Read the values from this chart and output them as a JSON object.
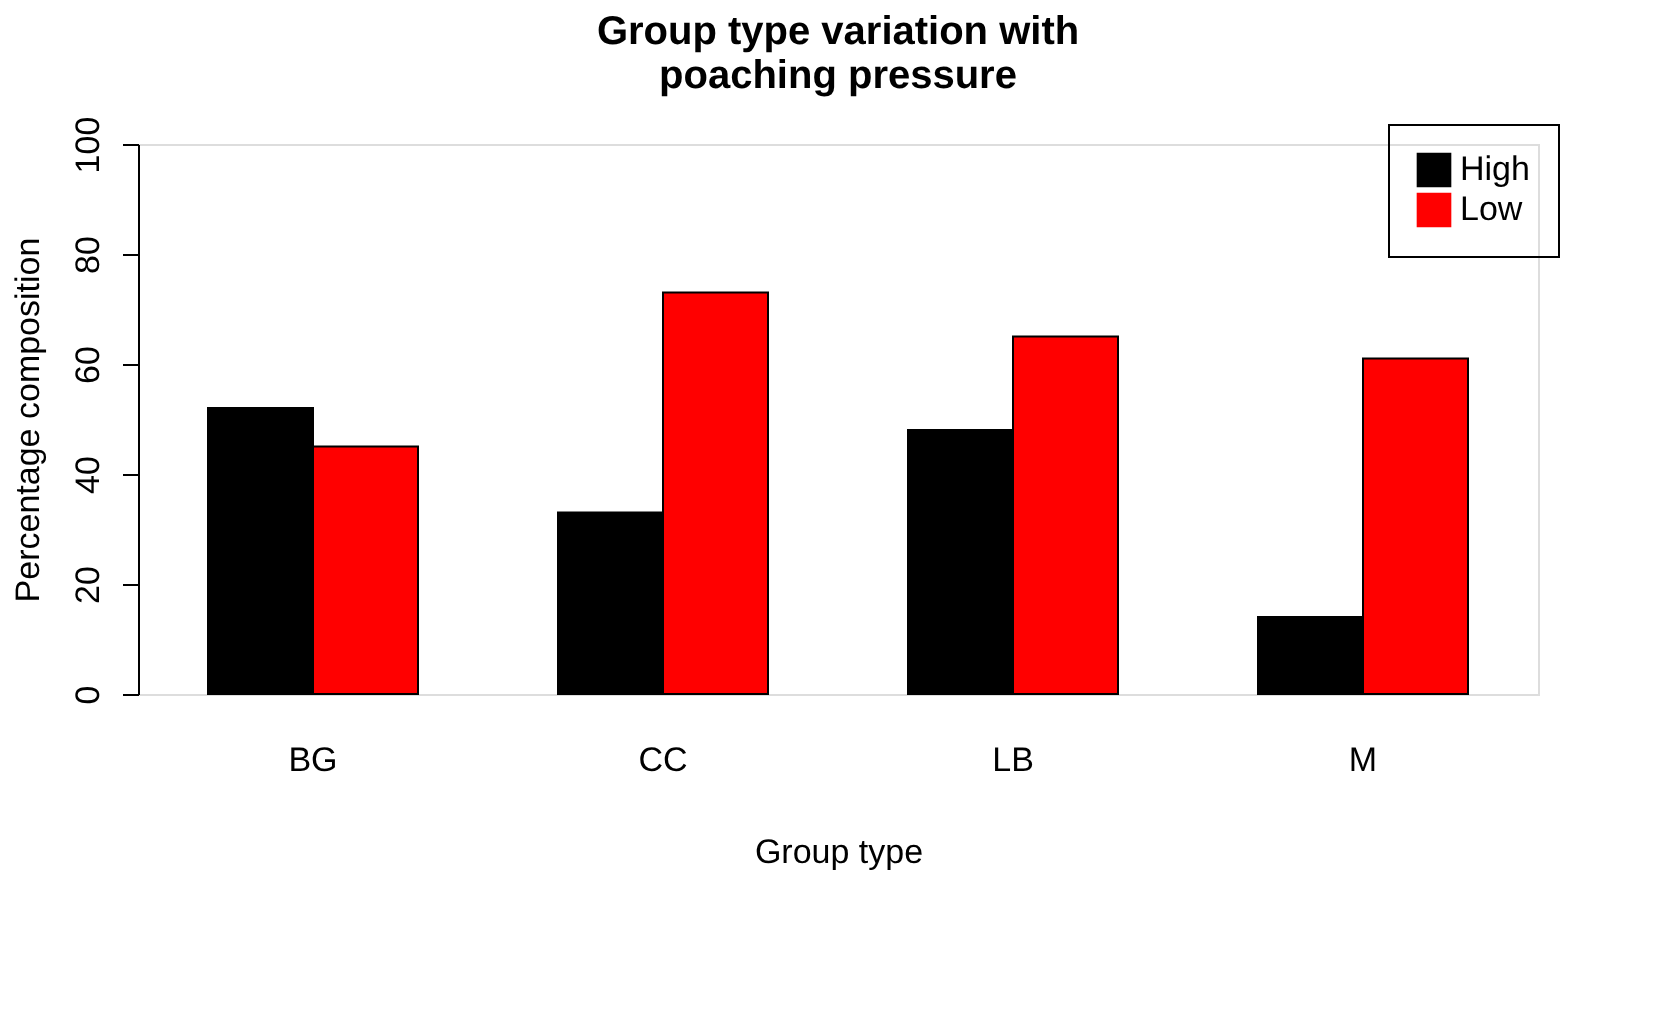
{
  "chart_data": {
    "type": "bar",
    "title": "Group type variation with\npoaching pressure",
    "xlabel": "Group type",
    "ylabel": "Percentage composition",
    "categories": [
      "BG",
      "CC",
      "LB",
      "M"
    ],
    "series": [
      {
        "name": "High",
        "color": "#000000",
        "values": [
          52,
          33,
          48,
          14
        ]
      },
      {
        "name": "Low",
        "color": "#ff0000",
        "values": [
          45,
          73,
          65,
          61
        ]
      }
    ],
    "ylim": [
      0,
      100
    ],
    "yticks": [
      0,
      20,
      40,
      60,
      80,
      100
    ],
    "grid": false,
    "legend": "top right"
  }
}
